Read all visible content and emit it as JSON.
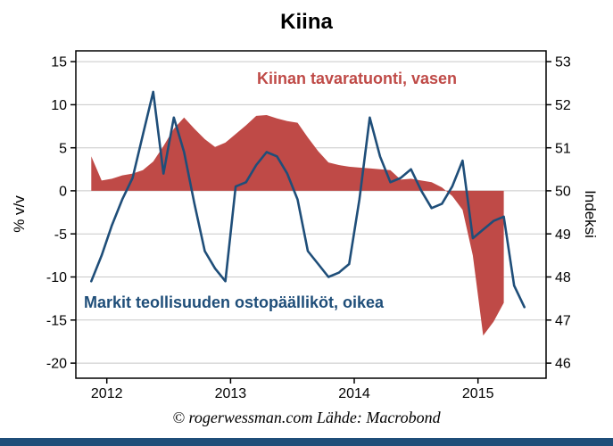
{
  "page": {
    "title": "Kiina"
  },
  "footer": {
    "credit": "© rogerwessman.com Lähde: Macrobond"
  },
  "colors": {
    "accent_bar": "#1f4e79",
    "grid": "#c8c8c8",
    "axis_line": "#000000",
    "background": "#ffffff"
  },
  "chart_data": {
    "type": "line",
    "title": "Kiina",
    "x_range": [
      2011.75,
      2015.55
    ],
    "x_ticks": [
      2012,
      2013,
      2014,
      2015
    ],
    "grid": "horizontal",
    "legend_position": "in-plot annotations",
    "left_axis": {
      "label": "% v/v",
      "range": [
        -21.75,
        16.25
      ],
      "ticks": [
        15,
        10,
        5,
        0,
        -5,
        -10,
        -15,
        -20
      ]
    },
    "right_axis": {
      "label": "Indeksi",
      "range": [
        45.65,
        53.25
      ],
      "ticks": [
        53,
        52,
        51,
        50,
        49,
        48,
        47,
        46
      ]
    },
    "series": [
      {
        "name": "Kiinan tavaratuonti, vasen",
        "axis": "left",
        "type": "area",
        "color": "#bf4a47",
        "x": [
          "2011-11",
          "2011-12",
          "2012-01",
          "2012-02",
          "2012-03",
          "2012-04",
          "2012-05",
          "2012-06",
          "2012-07",
          "2012-08",
          "2012-09",
          "2012-10",
          "2012-11",
          "2012-12",
          "2013-01",
          "2013-02",
          "2013-03",
          "2013-04",
          "2013-05",
          "2013-06",
          "2013-07",
          "2013-08",
          "2013-09",
          "2013-10",
          "2013-11",
          "2013-12",
          "2014-01",
          "2014-02",
          "2014-03",
          "2014-04",
          "2014-05",
          "2014-06",
          "2014-07",
          "2014-08",
          "2014-09",
          "2014-10",
          "2014-11",
          "2014-12",
          "2015-01",
          "2015-02",
          "2015-03"
        ],
        "values": [
          4.0,
          1.2,
          1.4,
          1.8,
          2.0,
          2.4,
          3.4,
          5.2,
          7.2,
          8.5,
          7.2,
          6.0,
          5.1,
          5.6,
          6.6,
          7.6,
          8.7,
          8.8,
          8.4,
          8.1,
          7.9,
          6.2,
          4.6,
          3.3,
          3.0,
          2.8,
          2.7,
          2.6,
          2.5,
          2.4,
          1.3,
          1.4,
          1.2,
          1.0,
          0.4,
          -0.6,
          -2.2,
          -7.5,
          -16.8,
          -15.2,
          -13.0
        ]
      },
      {
        "name": "Markit teollisuuden ostopäälliköt, oikea",
        "axis": "right",
        "type": "line",
        "color": "#1f4e79",
        "x": [
          "2011-11",
          "2011-12",
          "2012-01",
          "2012-02",
          "2012-03",
          "2012-04",
          "2012-05",
          "2012-06",
          "2012-07",
          "2012-08",
          "2012-09",
          "2012-10",
          "2012-11",
          "2012-12",
          "2013-01",
          "2013-02",
          "2013-03",
          "2013-04",
          "2013-05",
          "2013-06",
          "2013-07",
          "2013-08",
          "2013-09",
          "2013-10",
          "2013-11",
          "2013-12",
          "2014-01",
          "2014-02",
          "2014-03",
          "2014-04",
          "2014-05",
          "2014-06",
          "2014-07",
          "2014-08",
          "2014-09",
          "2014-10",
          "2014-11",
          "2014-12",
          "2015-01",
          "2015-02",
          "2015-03",
          "2015-04",
          "2015-05"
        ],
        "values": [
          47.9,
          48.5,
          49.2,
          49.8,
          50.3,
          51.3,
          52.3,
          50.4,
          51.7,
          50.9,
          49.7,
          48.6,
          48.2,
          47.9,
          50.1,
          50.2,
          50.6,
          50.9,
          50.8,
          50.4,
          49.8,
          48.6,
          48.3,
          48.0,
          48.1,
          48.3,
          49.8,
          51.7,
          50.8,
          50.2,
          50.3,
          50.5,
          50.0,
          49.6,
          49.7,
          50.1,
          50.7,
          48.9,
          49.1,
          49.3,
          49.4,
          47.8,
          47.3
        ]
      }
    ],
    "annotations": [
      {
        "text": "Kiinan tavaratuonti, vasen",
        "color": "#bf4a47"
      },
      {
        "text": "Markit teollisuuden ostopäälliköt, oikea",
        "color": "#1f4e79"
      }
    ]
  }
}
